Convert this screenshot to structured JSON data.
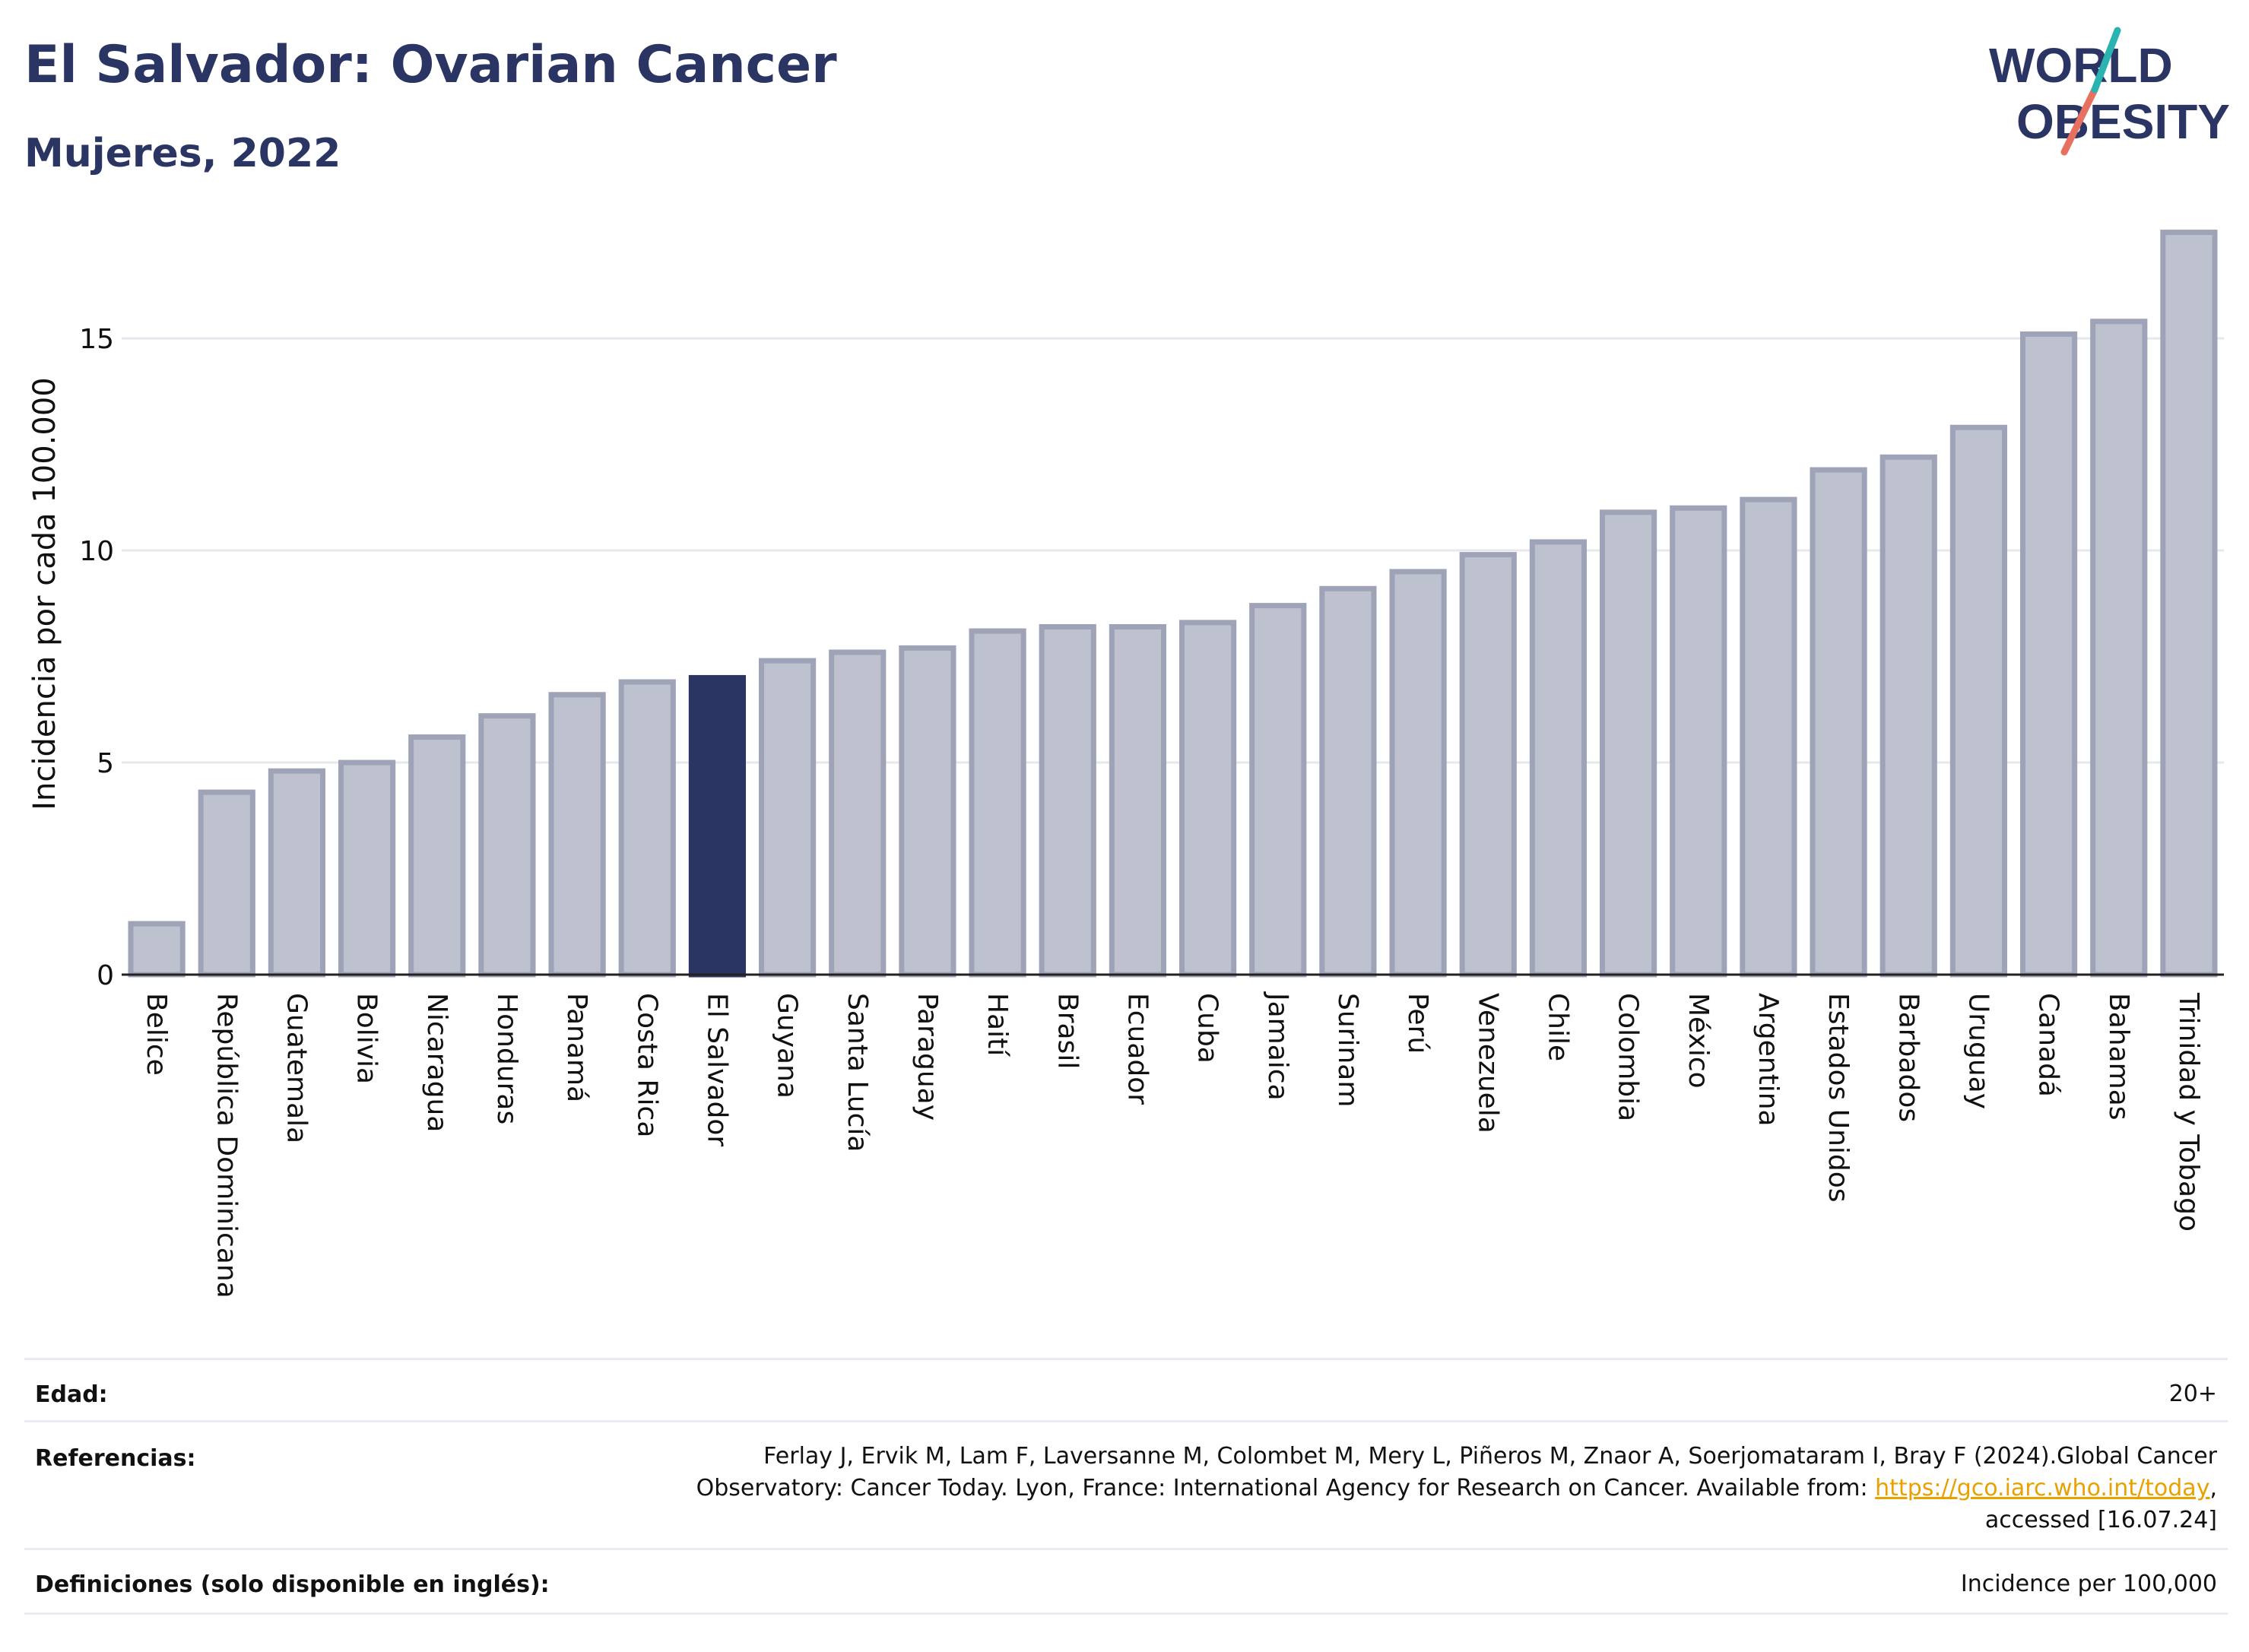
{
  "header": {
    "title": "El Salvador: Ovarian Cancer",
    "subtitle": "Mujeres, 2022"
  },
  "logo": {
    "line1": "WORLD",
    "line2": "OBESITY"
  },
  "chart_data": {
    "type": "bar",
    "title": "El Salvador: Ovarian Cancer",
    "subtitle": "Mujeres, 2022",
    "ylabel": "Incidencia por cada 100.000",
    "xlabel": "",
    "ylim": [
      0,
      17.6
    ],
    "yticks": [
      0,
      5,
      10,
      15
    ],
    "grid": true,
    "highlight": "El Salvador",
    "colors": {
      "bar": "#bec1ce",
      "bar_edge": "#9ea3b8",
      "highlight": "#2b3564"
    },
    "categories": [
      "Belice",
      "República Dominicana",
      "Guatemala",
      "Bolivia",
      "Nicaragua",
      "Honduras",
      "Panamá",
      "Costa Rica",
      "El Salvador",
      "Guyana",
      "Santa Lucía",
      "Paraguay",
      "Haití",
      "Brasil",
      "Ecuador",
      "Cuba",
      "Jamaica",
      "Surinam",
      "Perú",
      "Venezuela",
      "Chile",
      "Colombia",
      "México",
      "Argentina",
      "Estados Unidos",
      "Barbados",
      "Uruguay",
      "Canadá",
      "Bahamas",
      "Trinidad y Tobago"
    ],
    "values": [
      1.2,
      4.3,
      4.8,
      5.0,
      5.6,
      6.1,
      6.6,
      6.9,
      7.0,
      7.4,
      7.6,
      7.7,
      8.1,
      8.2,
      8.2,
      8.3,
      8.7,
      9.1,
      9.5,
      9.9,
      10.2,
      10.9,
      11.0,
      11.2,
      11.9,
      12.2,
      12.9,
      15.1,
      15.4,
      17.5
    ]
  },
  "meta": {
    "age_label": "Edad:",
    "age_value": "20+",
    "ref_label": "Referencias:",
    "ref_line1": "Ferlay J, Ervik M, Lam F, Laversanne M, Colombet M, Mery L, Piñeros M, Znaor A, Soerjomataram I, Bray F (2024).Global Cancer",
    "ref_line2_pre": "Observatory: Cancer Today. Lyon, France: International Agency for Research on Cancer. Available from: ",
    "ref_link": "https://gco.iarc.who.int/today",
    "ref_line2_post": ",",
    "ref_line3": "accessed [16.07.24]",
    "def_label": "Definiciones (solo disponible en inglés):",
    "def_value": "Incidence per 100,000"
  }
}
